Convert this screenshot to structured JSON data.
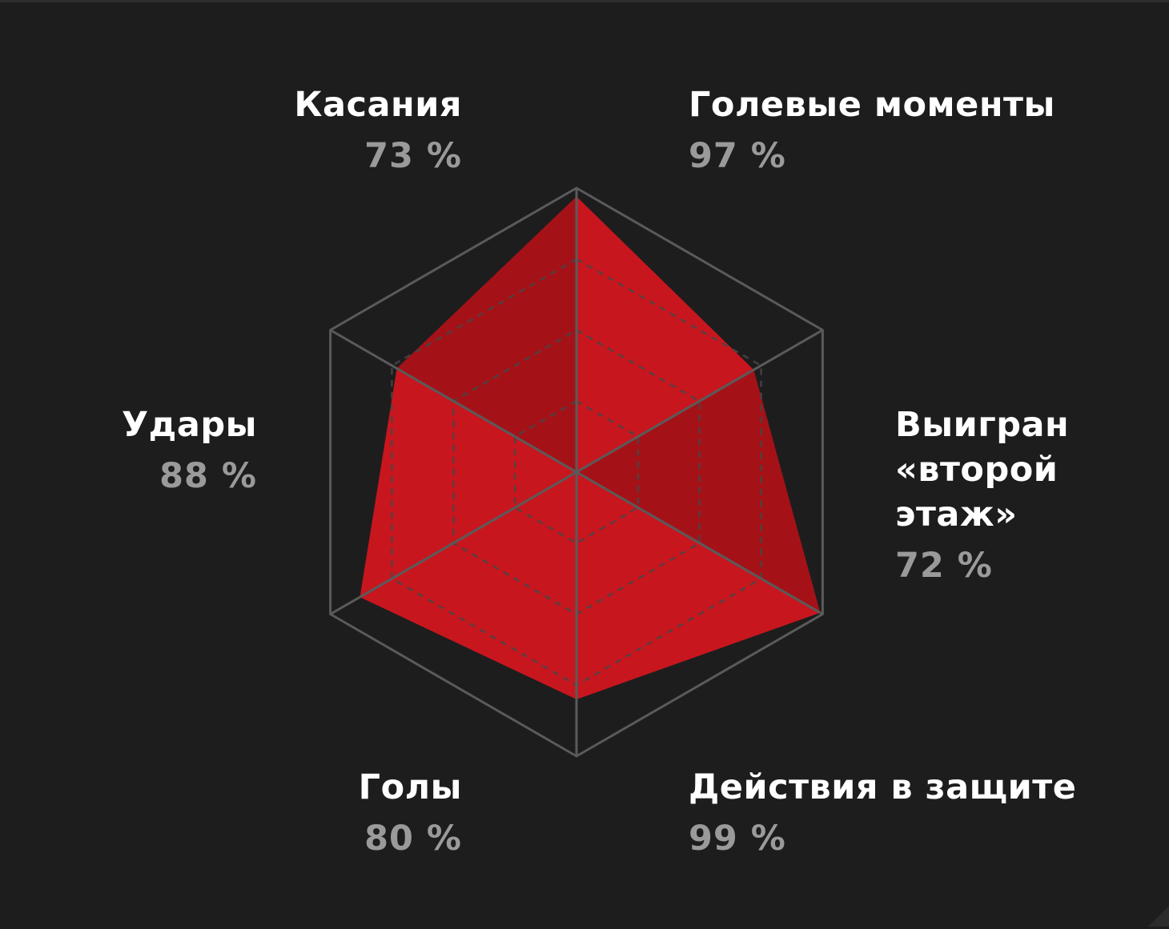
{
  "chart_data": {
    "type": "radar",
    "max": 100,
    "rings": [
      25,
      50,
      75,
      100
    ],
    "fill_color": "#c8161e",
    "axis_color": "#5a5a5a",
    "background": "#1d1d1e",
    "axes": [
      {
        "label": "Голевые моменты",
        "value": 97,
        "display": "97 %"
      },
      {
        "label": "Выигран «второй этаж»",
        "lines": [
          "Выигран",
          "«второй",
          "этаж»"
        ],
        "value": 72,
        "display": "72 %"
      },
      {
        "label": "Действия в защите",
        "value": 99,
        "display": "99 %"
      },
      {
        "label": "Голы",
        "value": 80,
        "display": "80 %"
      },
      {
        "label": "Удары",
        "value": 88,
        "display": "88 %"
      },
      {
        "label": "Касания",
        "value": 73,
        "display": "73 %"
      }
    ]
  }
}
